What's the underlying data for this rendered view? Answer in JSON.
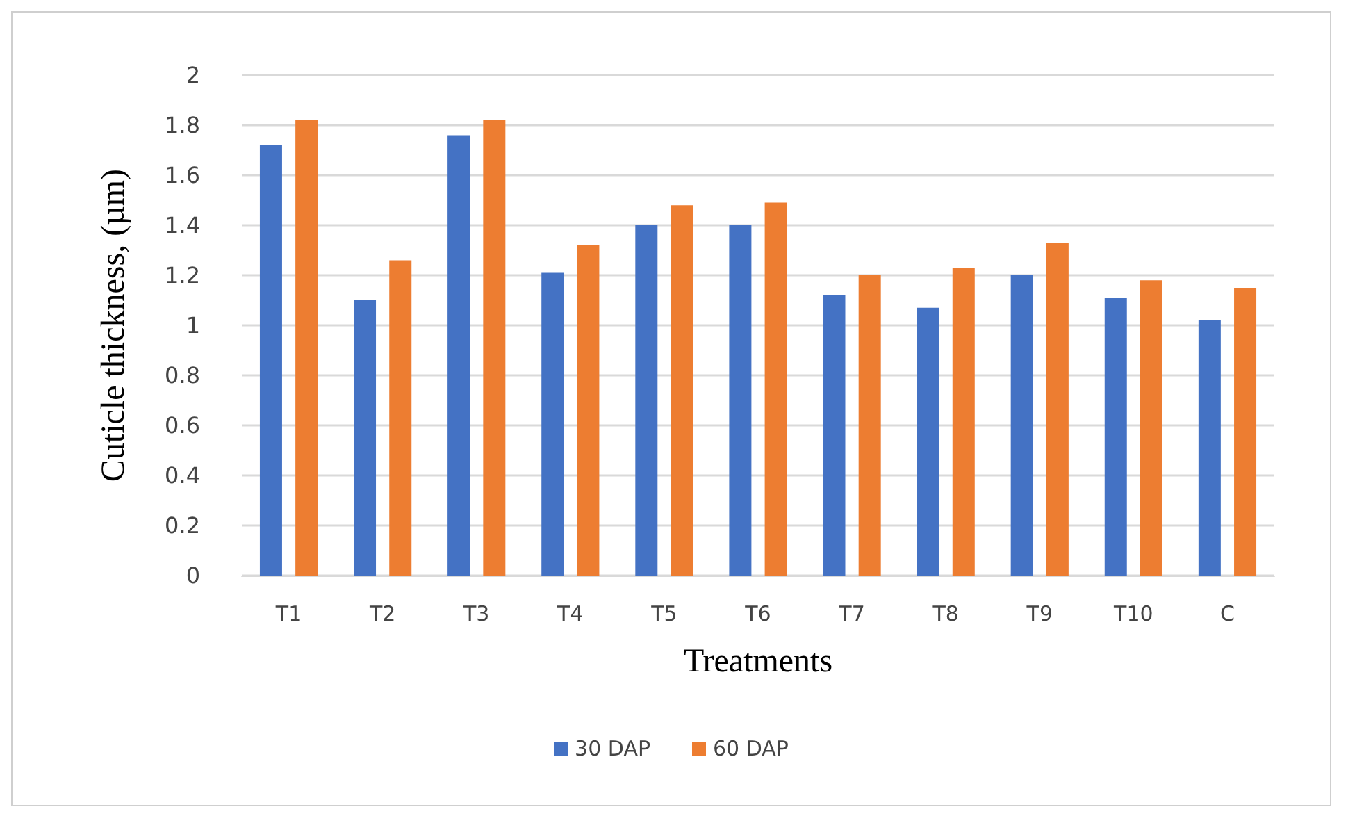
{
  "chart_data": {
    "type": "bar",
    "xlabel": "Treatments",
    "ylabel": "Cuticle thickness, (µm)",
    "categories": [
      "T1",
      "T2",
      "T3",
      "T4",
      "T5",
      "T6",
      "T7",
      "T8",
      "T9",
      "T10",
      "C"
    ],
    "series": [
      {
        "name": "30 DAP",
        "color": "#4472c4",
        "values": [
          1.72,
          1.1,
          1.76,
          1.21,
          1.4,
          1.4,
          1.12,
          1.07,
          1.2,
          1.11,
          1.02
        ]
      },
      {
        "name": "60 DAP",
        "color": "#ed7d31",
        "values": [
          1.82,
          1.26,
          1.82,
          1.32,
          1.48,
          1.49,
          1.2,
          1.23,
          1.33,
          1.18,
          1.15
        ]
      }
    ],
    "ylim": [
      0,
      2
    ],
    "yticks": [
      0,
      0.2,
      0.4,
      0.6,
      0.8,
      1,
      1.2,
      1.4,
      1.6,
      1.8,
      2
    ],
    "grid": "y",
    "legend": "bottom"
  }
}
